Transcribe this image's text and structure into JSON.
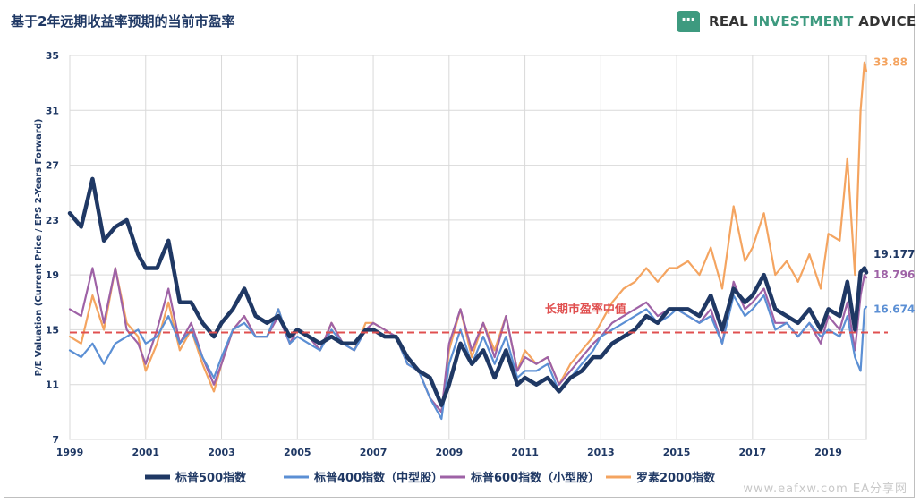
{
  "header": {
    "title": "基于2年远期收益率预期的当前市盈率",
    "brand_prefix": "REAL ",
    "brand_accent": "INVESTMENT",
    "brand_suffix": " ADVICE",
    "icon": "chat-bubble-icon"
  },
  "watermark": "www.eafxw.com  EA分享网",
  "chart_data": {
    "type": "line",
    "title": "基于2年远期收益率预期的当前市盈率",
    "ylabel": "P/E Valuation (Current Price / EPS 2-Years Forward)",
    "xlabel": "",
    "xlim": [
      1999,
      2020
    ],
    "ylim": [
      7,
      35
    ],
    "y_ticks": [
      "7",
      "11",
      "15",
      "19",
      "23",
      "27",
      "31",
      "35"
    ],
    "x_ticks": [
      "1999",
      "2001",
      "2003",
      "2005",
      "2007",
      "2009",
      "2011",
      "2013",
      "2015",
      "2017",
      "2019"
    ],
    "grid": true,
    "legend_position": "bottom",
    "reference_line": {
      "label": "长期市盈率中值",
      "value": 14.8,
      "color": "#e05050"
    },
    "series": [
      {
        "name": "罗素2000指数",
        "color": "#f4a460",
        "end_label": "33.88",
        "x": [
          1999.0,
          1999.3,
          1999.6,
          1999.9,
          2000.2,
          2000.5,
          2000.8,
          2001.0,
          2001.3,
          2001.6,
          2001.9,
          2002.2,
          2002.5,
          2002.8,
          2003.0,
          2003.3,
          2003.6,
          2003.9,
          2004.2,
          2004.5,
          2004.8,
          2005.0,
          2005.3,
          2005.6,
          2005.9,
          2006.2,
          2006.5,
          2006.8,
          2007.0,
          2007.3,
          2007.6,
          2007.9,
          2008.2,
          2008.5,
          2008.8,
          2009.0,
          2009.3,
          2009.6,
          2009.9,
          2010.2,
          2010.5,
          2010.8,
          2011.0,
          2011.3,
          2011.6,
          2011.9,
          2012.2,
          2012.5,
          2012.8,
          2013.0,
          2013.3,
          2013.6,
          2013.9,
          2014.2,
          2014.5,
          2014.8,
          2015.0,
          2015.3,
          2015.6,
          2015.9,
          2016.2,
          2016.5,
          2016.8,
          2017.0,
          2017.3,
          2017.6,
          2017.9,
          2018.2,
          2018.5,
          2018.8,
          2019.0,
          2019.3,
          2019.5,
          2019.7,
          2019.85,
          2019.95,
          2020.0
        ],
        "values": [
          14.5,
          14.0,
          17.5,
          15.0,
          19.5,
          15.5,
          14.5,
          12.0,
          14.0,
          17.0,
          13.5,
          15.0,
          12.5,
          10.5,
          12.5,
          15.0,
          16.0,
          14.5,
          14.5,
          16.5,
          14.0,
          15.0,
          14.5,
          13.5,
          15.5,
          14.0,
          13.5,
          15.5,
          15.5,
          15.0,
          14.5,
          12.5,
          12.0,
          10.0,
          9.0,
          13.5,
          16.5,
          13.0,
          15.5,
          13.5,
          16.0,
          12.0,
          13.5,
          12.5,
          13.0,
          11.0,
          12.5,
          13.5,
          14.5,
          15.5,
          17.0,
          18.0,
          18.5,
          19.5,
          18.5,
          19.5,
          19.5,
          20.0,
          19.0,
          21.0,
          18.0,
          24.0,
          20.0,
          21.0,
          23.5,
          19.0,
          20.0,
          18.5,
          20.5,
          18.0,
          22.0,
          21.5,
          27.5,
          19.0,
          31.0,
          34.5,
          33.88
        ]
      },
      {
        "name": "标普600指数（小型股）",
        "color": "#9e62a6",
        "end_label": "18.796",
        "x": [
          1999.0,
          1999.3,
          1999.6,
          1999.9,
          2000.2,
          2000.5,
          2000.8,
          2001.0,
          2001.3,
          2001.6,
          2001.9,
          2002.2,
          2002.5,
          2002.8,
          2003.0,
          2003.3,
          2003.6,
          2003.9,
          2004.2,
          2004.5,
          2004.8,
          2005.0,
          2005.3,
          2005.6,
          2005.9,
          2006.2,
          2006.5,
          2006.8,
          2007.0,
          2007.3,
          2007.6,
          2007.9,
          2008.2,
          2008.5,
          2008.8,
          2009.0,
          2009.3,
          2009.6,
          2009.9,
          2010.2,
          2010.5,
          2010.8,
          2011.0,
          2011.3,
          2011.6,
          2011.9,
          2012.2,
          2012.5,
          2012.8,
          2013.0,
          2013.3,
          2013.6,
          2013.9,
          2014.2,
          2014.5,
          2014.8,
          2015.0,
          2015.3,
          2015.6,
          2015.9,
          2016.2,
          2016.5,
          2016.8,
          2017.0,
          2017.3,
          2017.6,
          2017.9,
          2018.2,
          2018.5,
          2018.8,
          2019.0,
          2019.3,
          2019.5,
          2019.7,
          2019.85,
          2019.95,
          2020.0
        ],
        "values": [
          16.5,
          16.0,
          19.5,
          15.5,
          19.5,
          15.0,
          14.0,
          12.5,
          15.0,
          18.0,
          14.0,
          15.5,
          13.0,
          11.0,
          12.5,
          15.0,
          16.0,
          14.5,
          14.5,
          16.0,
          14.0,
          15.0,
          14.5,
          13.5,
          15.5,
          14.0,
          13.5,
          15.0,
          15.5,
          15.0,
          14.5,
          12.5,
          12.0,
          10.0,
          9.0,
          14.0,
          16.5,
          13.5,
          15.5,
          13.0,
          16.0,
          12.0,
          13.0,
          12.5,
          13.0,
          11.0,
          12.0,
          13.0,
          14.0,
          14.5,
          15.5,
          16.0,
          16.5,
          17.0,
          16.0,
          16.5,
          16.5,
          16.0,
          15.5,
          16.5,
          14.0,
          18.5,
          16.5,
          17.0,
          18.0,
          15.5,
          15.5,
          14.5,
          15.5,
          14.0,
          16.0,
          15.0,
          17.0,
          13.5,
          17.5,
          19.0,
          18.796
        ]
      },
      {
        "name": "标普400指数（中型股）",
        "color": "#5b8fd4",
        "end_label": "16.674",
        "x": [
          1999.0,
          1999.3,
          1999.6,
          1999.9,
          2000.2,
          2000.5,
          2000.8,
          2001.0,
          2001.3,
          2001.6,
          2001.9,
          2002.2,
          2002.5,
          2002.8,
          2003.0,
          2003.3,
          2003.6,
          2003.9,
          2004.2,
          2004.5,
          2004.8,
          2005.0,
          2005.3,
          2005.6,
          2005.9,
          2006.2,
          2006.5,
          2006.8,
          2007.0,
          2007.3,
          2007.6,
          2007.9,
          2008.2,
          2008.5,
          2008.8,
          2009.0,
          2009.3,
          2009.6,
          2009.9,
          2010.2,
          2010.5,
          2010.8,
          2011.0,
          2011.3,
          2011.6,
          2011.9,
          2012.2,
          2012.5,
          2012.8,
          2013.0,
          2013.3,
          2013.6,
          2013.9,
          2014.2,
          2014.5,
          2014.8,
          2015.0,
          2015.3,
          2015.6,
          2015.9,
          2016.2,
          2016.5,
          2016.8,
          2017.0,
          2017.3,
          2017.6,
          2017.9,
          2018.2,
          2018.5,
          2018.8,
          2019.0,
          2019.3,
          2019.5,
          2019.7,
          2019.85,
          2019.95,
          2020.0
        ],
        "values": [
          13.5,
          13.0,
          14.0,
          12.5,
          14.0,
          14.5,
          15.0,
          14.0,
          14.5,
          16.0,
          14.0,
          15.0,
          13.0,
          11.5,
          13.0,
          15.0,
          15.5,
          14.5,
          14.5,
          16.5,
          14.0,
          14.5,
          14.0,
          13.5,
          15.0,
          14.0,
          13.5,
          15.0,
          15.0,
          14.5,
          14.5,
          12.5,
          12.0,
          10.0,
          8.5,
          12.5,
          15.0,
          12.5,
          14.5,
          12.5,
          14.5,
          11.5,
          12.0,
          12.0,
          12.5,
          10.5,
          11.5,
          12.5,
          13.5,
          14.5,
          15.0,
          15.5,
          16.0,
          16.5,
          15.5,
          16.0,
          16.5,
          16.0,
          15.5,
          16.0,
          14.0,
          17.5,
          16.0,
          16.5,
          17.5,
          15.0,
          15.5,
          14.5,
          15.5,
          14.5,
          15.0,
          14.5,
          16.0,
          13.0,
          12.0,
          16.5,
          16.674
        ]
      },
      {
        "name": "标普500指数",
        "color": "#1f3864",
        "end_label": "19.177",
        "x": [
          1999.0,
          1999.3,
          1999.6,
          1999.9,
          2000.2,
          2000.5,
          2000.8,
          2001.0,
          2001.3,
          2001.6,
          2001.9,
          2002.2,
          2002.5,
          2002.8,
          2003.0,
          2003.3,
          2003.6,
          2003.9,
          2004.2,
          2004.5,
          2004.8,
          2005.0,
          2005.3,
          2005.6,
          2005.9,
          2006.2,
          2006.5,
          2006.8,
          2007.0,
          2007.3,
          2007.6,
          2007.9,
          2008.2,
          2008.5,
          2008.8,
          2009.0,
          2009.3,
          2009.6,
          2009.9,
          2010.2,
          2010.5,
          2010.8,
          2011.0,
          2011.3,
          2011.6,
          2011.9,
          2012.2,
          2012.5,
          2012.8,
          2013.0,
          2013.3,
          2013.6,
          2013.9,
          2014.2,
          2014.5,
          2014.8,
          2015.0,
          2015.3,
          2015.6,
          2015.9,
          2016.2,
          2016.5,
          2016.8,
          2017.0,
          2017.3,
          2017.6,
          2017.9,
          2018.2,
          2018.5,
          2018.8,
          2019.0,
          2019.3,
          2019.5,
          2019.7,
          2019.85,
          2019.95,
          2020.0
        ],
        "values": [
          23.5,
          22.5,
          26.0,
          21.5,
          22.5,
          23.0,
          20.5,
          19.5,
          19.5,
          21.5,
          17.0,
          17.0,
          15.5,
          14.5,
          15.5,
          16.5,
          18.0,
          16.0,
          15.5,
          16.0,
          14.5,
          15.0,
          14.5,
          14.0,
          14.5,
          14.0,
          14.0,
          15.0,
          15.0,
          14.5,
          14.5,
          13.0,
          12.0,
          11.5,
          9.5,
          11.0,
          14.0,
          12.5,
          13.5,
          11.5,
          13.5,
          11.0,
          11.5,
          11.0,
          11.5,
          10.5,
          11.5,
          12.0,
          13.0,
          13.0,
          14.0,
          14.5,
          15.0,
          16.0,
          15.5,
          16.5,
          16.5,
          16.5,
          16.0,
          17.5,
          15.0,
          18.0,
          17.0,
          17.5,
          19.0,
          16.5,
          16.0,
          15.5,
          16.5,
          15.0,
          16.5,
          16.0,
          18.5,
          15.0,
          19.2,
          19.5,
          19.177
        ]
      }
    ]
  }
}
